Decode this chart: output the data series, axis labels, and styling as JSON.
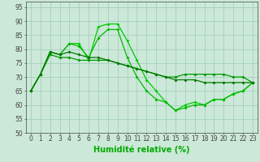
{
  "series": [
    {
      "x": [
        0,
        1,
        2,
        3,
        4,
        5,
        6,
        7,
        8,
        9,
        10,
        11,
        12,
        13,
        14,
        15,
        16,
        17,
        18,
        19,
        20,
        21,
        22,
        23
      ],
      "y": [
        65,
        71,
        79,
        78,
        82,
        82,
        76,
        88,
        89,
        89,
        83,
        76,
        69,
        65,
        61,
        58,
        60,
        61,
        60,
        62,
        62,
        64,
        65,
        68
      ],
      "color": "#00cc00",
      "marker": "D",
      "markersize": 2.0,
      "linewidth": 0.9
    },
    {
      "x": [
        0,
        1,
        2,
        3,
        4,
        5,
        6,
        7,
        8,
        9,
        10,
        11,
        12,
        13,
        14,
        15,
        16,
        17,
        18,
        19,
        20,
        21,
        22,
        23
      ],
      "y": [
        65,
        71,
        79,
        78,
        82,
        81,
        77,
        84,
        87,
        87,
        77,
        70,
        65,
        62,
        61,
        58,
        59,
        60,
        60,
        62,
        62,
        64,
        65,
        68
      ],
      "color": "#00bb00",
      "marker": "D",
      "markersize": 2.0,
      "linewidth": 0.9
    },
    {
      "x": [
        0,
        1,
        2,
        3,
        4,
        5,
        6,
        7,
        8,
        9,
        10,
        11,
        12,
        13,
        14,
        15,
        16,
        17,
        18,
        19,
        20,
        21,
        22,
        23
      ],
      "y": [
        65,
        71,
        78,
        77,
        77,
        76,
        76,
        76,
        76,
        75,
        74,
        73,
        72,
        71,
        70,
        70,
        71,
        71,
        71,
        71,
        71,
        70,
        70,
        68
      ],
      "color": "#009900",
      "marker": "D",
      "markersize": 2.0,
      "linewidth": 0.9
    },
    {
      "x": [
        0,
        1,
        2,
        3,
        4,
        5,
        6,
        7,
        8,
        9,
        10,
        11,
        12,
        13,
        14,
        15,
        16,
        17,
        18,
        19,
        20,
        21,
        22,
        23
      ],
      "y": [
        65,
        71,
        79,
        78,
        79,
        78,
        77,
        77,
        76,
        75,
        74,
        73,
        72,
        71,
        70,
        69,
        69,
        69,
        68,
        68,
        68,
        68,
        68,
        68
      ],
      "color": "#007700",
      "marker": "D",
      "markersize": 2.0,
      "linewidth": 0.9
    }
  ],
  "xlim": [
    -0.5,
    23.5
  ],
  "ylim": [
    50,
    97
  ],
  "yticks": [
    50,
    55,
    60,
    65,
    70,
    75,
    80,
    85,
    90,
    95
  ],
  "xticks": [
    0,
    1,
    2,
    3,
    4,
    5,
    6,
    7,
    8,
    9,
    10,
    11,
    12,
    13,
    14,
    15,
    16,
    17,
    18,
    19,
    20,
    21,
    22,
    23
  ],
  "xlabel": "Humidité relative (%)",
  "xlabel_color": "#00aa00",
  "xlabel_fontsize": 7,
  "tick_fontsize": 5.5,
  "bg_color": "#cce8d8",
  "grid_color": "#99ccbb",
  "axis_color": "#444444",
  "fig_width": 3.2,
  "fig_height": 2.0,
  "dpi": 100
}
